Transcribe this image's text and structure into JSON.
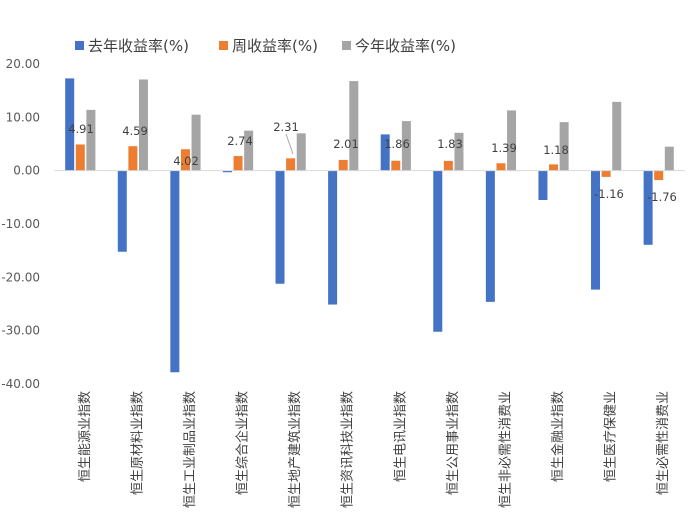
{
  "chart_data": {
    "type": "bar",
    "title": "",
    "xlabel": "",
    "ylabel": "",
    "ylim": [
      -40,
      20
    ],
    "y_ticks": [
      "20.00",
      "10.00",
      "0.00",
      "-10.00",
      "-20.00",
      "-30.00",
      "-40.00"
    ],
    "y_tick_values": [
      20,
      10,
      0,
      -10,
      -20,
      -30,
      -40
    ],
    "grid": false,
    "legend_position": "top",
    "categories": [
      "恒生能源业指数",
      "恒生原材料业指数",
      "恒生工业制品业指数",
      "恒生综合企业指数",
      "恒生地产建筑业指数",
      "恒生资讯科技业指数",
      "恒生电讯业指数",
      "恒生公用事业指数",
      "恒生非必需性消费业",
      "恒生金融业指数",
      "恒生医疗保健业",
      "恒生必需性消费业"
    ],
    "series": [
      {
        "name": "去年收益率(%)",
        "color": "#4472C4",
        "values": [
          17.3,
          -15.2,
          -37.8,
          -0.3,
          -21.2,
          -25.1,
          6.8,
          -30.2,
          -24.6,
          -5.5,
          -22.3,
          -13.9
        ]
      },
      {
        "name": "周收益率(%)",
        "color": "#ED7D31",
        "values": [
          4.91,
          4.59,
          4.02,
          2.74,
          2.31,
          2.01,
          1.86,
          1.83,
          1.39,
          1.18,
          -1.16,
          -1.76
        ]
      },
      {
        "name": "今年收益率(%)",
        "color": "#A5A5A5",
        "values": [
          11.4,
          17.1,
          10.5,
          7.5,
          7.0,
          16.8,
          9.3,
          7.1,
          11.3,
          9.1,
          12.9,
          4.5
        ]
      }
    ],
    "data_labels": [
      "4.91",
      "4.59",
      "4.02",
      "2.74",
      "2.31",
      "2.01",
      "1.86",
      "1.83",
      "1.39",
      "1.18",
      "-1.16",
      "-1.76"
    ]
  }
}
